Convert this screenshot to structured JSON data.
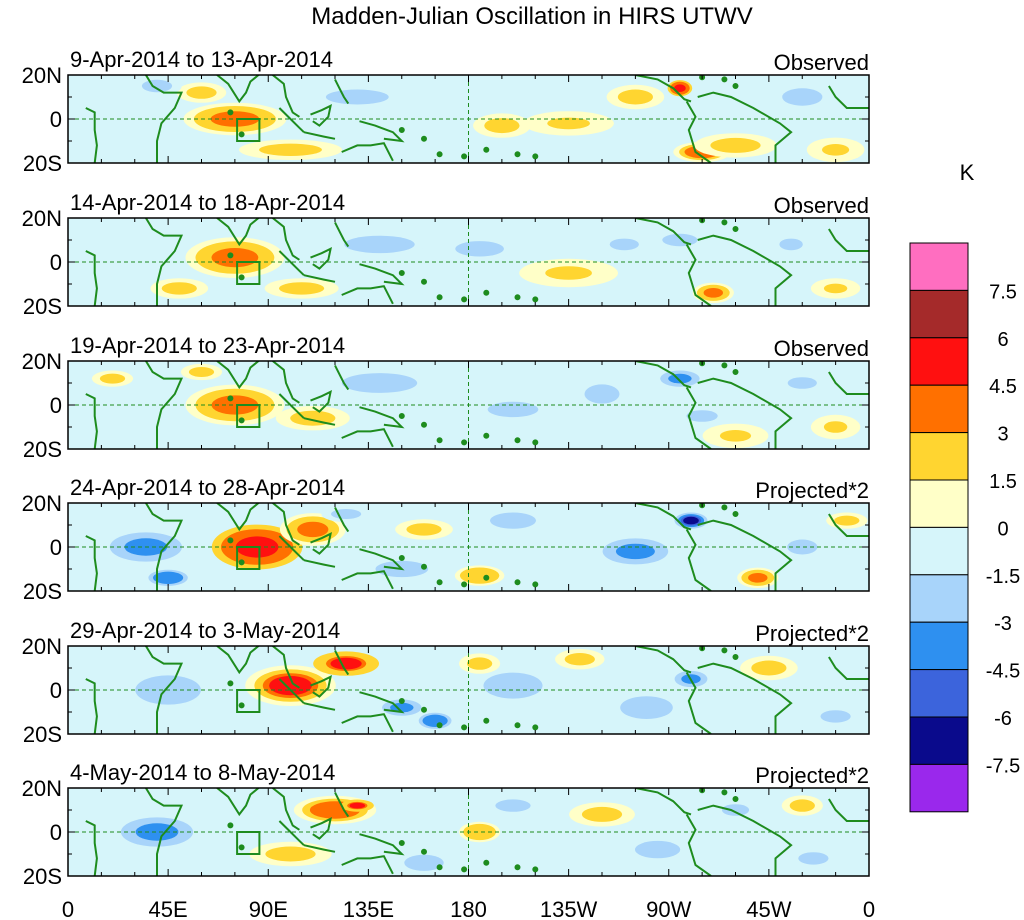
{
  "chart_data": {
    "type": "heatmap",
    "title": "Madden-Julian Oscillation in HIRS UTWV",
    "x_ticks": [
      "0",
      "45E",
      "90E",
      "135E",
      "180",
      "135W",
      "90W",
      "45W",
      "0"
    ],
    "y_ticks": [
      "20N",
      "0",
      "20S"
    ],
    "x_range_deg": [
      0,
      360
    ],
    "y_range_deg": [
      -20,
      20
    ],
    "units": "K",
    "colorbar": {
      "labels": [
        "7.5",
        "6",
        "4.5",
        "3",
        "1.5",
        "0",
        "-1.5",
        "-3",
        "-4.5",
        "-6",
        "-7.5"
      ],
      "colors": [
        "#FF6EC0",
        "#A52A2A",
        "#FF1010",
        "#FF7000",
        "#FFD530",
        "#FFFFC8",
        "#D6F5FA",
        "#A8D4FA",
        "#2E90F0",
        "#3C64DC",
        "#0A0A8C",
        "#9A28EC"
      ]
    },
    "panels": [
      {
        "date": "9-Apr-2014 to 13-Apr-2014",
        "label": "Observed",
        "blobs": [
          [
            75,
            0,
            25,
            8,
            3.2
          ],
          [
            60,
            12,
            12,
            5,
            2.2
          ],
          [
            100,
            -14,
            25,
            5,
            2.4
          ],
          [
            130,
            10,
            25,
            6,
            -2
          ],
          [
            40,
            15,
            12,
            5,
            -2
          ],
          [
            175,
            8,
            20,
            8,
            -1.5
          ],
          [
            225,
            -2,
            22,
            6,
            1.8
          ],
          [
            195,
            -3,
            14,
            6,
            2
          ],
          [
            255,
            10,
            14,
            6,
            2.2
          ],
          [
            275,
            14,
            6,
            4,
            5.5
          ],
          [
            285,
            -15,
            14,
            5,
            4
          ],
          [
            300,
            -12,
            20,
            6,
            2.2
          ],
          [
            330,
            10,
            16,
            7,
            -2.2
          ],
          [
            160,
            -12,
            20,
            5,
            -1.3
          ],
          [
            345,
            -14,
            14,
            6,
            1.8
          ]
        ]
      },
      {
        "date": "14-Apr-2014 to 18-Apr-2014",
        "label": "Observed",
        "blobs": [
          [
            75,
            2,
            24,
            10,
            3.6
          ],
          [
            50,
            -12,
            14,
            5,
            2
          ],
          [
            105,
            -12,
            18,
            5,
            2
          ],
          [
            140,
            8,
            28,
            7,
            -2.2
          ],
          [
            185,
            6,
            25,
            8,
            -1.6
          ],
          [
            225,
            -5,
            24,
            7,
            1.7
          ],
          [
            250,
            8,
            15,
            6,
            -1.8
          ],
          [
            275,
            10,
            14,
            5,
            -2
          ],
          [
            290,
            -14,
            10,
            5,
            3.2
          ],
          [
            325,
            8,
            12,
            6,
            -1.7
          ],
          [
            160,
            -14,
            20,
            5,
            -1.2
          ],
          [
            345,
            -12,
            12,
            5,
            1.6
          ]
        ]
      },
      {
        "date": "19-Apr-2014 to 23-Apr-2014",
        "label": "Observed",
        "blobs": [
          [
            75,
            0,
            24,
            10,
            3.8
          ],
          [
            60,
            15,
            10,
            4,
            2
          ],
          [
            110,
            -6,
            18,
            6,
            2
          ],
          [
            140,
            10,
            30,
            8,
            -2
          ],
          [
            200,
            -2,
            26,
            8,
            -1.8
          ],
          [
            240,
            5,
            18,
            10,
            -1.6
          ],
          [
            275,
            12,
            12,
            5,
            -3.4
          ],
          [
            285,
            -5,
            16,
            6,
            -1.8
          ],
          [
            300,
            -14,
            16,
            6,
            1.8
          ],
          [
            330,
            10,
            15,
            6,
            -1.8
          ],
          [
            345,
            -10,
            12,
            6,
            1.6
          ],
          [
            20,
            12,
            10,
            4,
            2
          ]
        ]
      },
      {
        "date": "24-Apr-2014 to 28-Apr-2014",
        "label": "Projected*2",
        "blobs": [
          [
            85,
            0,
            22,
            11,
            5.6
          ],
          [
            110,
            8,
            16,
            8,
            3.8
          ],
          [
            35,
            0,
            22,
            9,
            -3.6
          ],
          [
            45,
            -14,
            12,
            5,
            -4.6
          ],
          [
            150,
            -10,
            16,
            5,
            -2.8
          ],
          [
            125,
            15,
            12,
            4,
            -2.5
          ],
          [
            200,
            12,
            14,
            5,
            -3
          ],
          [
            255,
            -2,
            20,
            8,
            -3.8
          ],
          [
            280,
            12,
            8,
            4,
            -7.4
          ],
          [
            310,
            -14,
            10,
            5,
            3.2
          ],
          [
            185,
            -13,
            12,
            5,
            3
          ],
          [
            160,
            8,
            14,
            5,
            2
          ],
          [
            330,
            0,
            12,
            6,
            -2.5
          ],
          [
            350,
            12,
            10,
            4,
            2
          ]
        ]
      },
      {
        "date": "29-Apr-2014 to 3-May-2014",
        "label": "Projected*2",
        "blobs": [
          [
            100,
            2,
            22,
            10,
            4.8
          ],
          [
            125,
            12,
            16,
            6,
            5
          ],
          [
            45,
            0,
            20,
            9,
            -3
          ],
          [
            150,
            -8,
            12,
            5,
            -3.5
          ],
          [
            165,
            -14,
            10,
            5,
            -4
          ],
          [
            200,
            2,
            18,
            8,
            -2.8
          ],
          [
            230,
            14,
            12,
            5,
            2.4
          ],
          [
            260,
            -8,
            16,
            7,
            -2.8
          ],
          [
            280,
            5,
            10,
            5,
            -3.6
          ],
          [
            315,
            10,
            14,
            6,
            2.2
          ],
          [
            345,
            -12,
            12,
            5,
            -2.6
          ],
          [
            185,
            12,
            10,
            5,
            2.2
          ]
        ]
      },
      {
        "date": "4-May-2014 to 8-May-2014",
        "label": "Projected*2",
        "blobs": [
          [
            120,
            10,
            20,
            7,
            4
          ],
          [
            130,
            12,
            8,
            3,
            5
          ],
          [
            40,
            0,
            22,
            9,
            -3.6
          ],
          [
            100,
            -10,
            20,
            6,
            2
          ],
          [
            75,
            0,
            14,
            6,
            -1.5
          ],
          [
            160,
            -14,
            12,
            5,
            -3
          ],
          [
            185,
            0,
            10,
            5,
            3
          ],
          [
            200,
            12,
            14,
            5,
            -2.4
          ],
          [
            240,
            8,
            16,
            6,
            2.2
          ],
          [
            265,
            -8,
            18,
            7,
            -2.6
          ],
          [
            300,
            10,
            14,
            6,
            -1.8
          ],
          [
            330,
            12,
            10,
            5,
            2.4
          ],
          [
            335,
            -12,
            12,
            5,
            -2
          ]
        ]
      }
    ]
  }
}
